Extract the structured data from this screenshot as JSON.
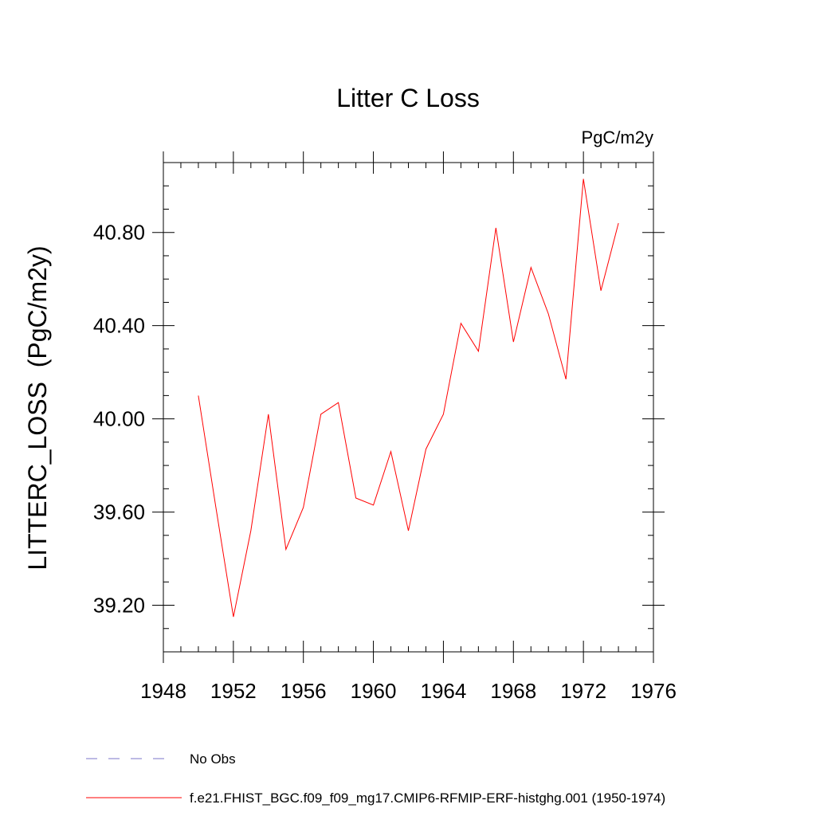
{
  "chart_data": {
    "type": "line",
    "title": "Litter C Loss",
    "units_label": "PgC/m2y",
    "xlabel": "",
    "ylabel": "LITTERC_LOSS  (PgC/m2y)",
    "xlim": [
      1948,
      1976
    ],
    "ylim": [
      39.0,
      41.1
    ],
    "x_ticks": [
      1948,
      1952,
      1956,
      1960,
      1964,
      1968,
      1972,
      1976
    ],
    "x_tick_labels": [
      "1948",
      "1952",
      "1956",
      "1960",
      "1964",
      "1968",
      "1972",
      "1976"
    ],
    "y_ticks": [
      39.2,
      39.6,
      40.0,
      40.4,
      40.8
    ],
    "y_tick_labels": [
      "39.20",
      "39.60",
      "40.00",
      "40.40",
      "40.80"
    ],
    "x_minor_step": 1,
    "y_minor_step": 0.1,
    "grid": false,
    "series": [
      {
        "name": "f.e21.FHIST_BGC.f09_f09_mg17.CMIP6-RFMIP-ERF-histghg.001 (1950-1974)",
        "color": "#ff0000",
        "style": "solid",
        "x": [
          1950,
          1951,
          1952,
          1953,
          1954,
          1955,
          1956,
          1957,
          1958,
          1959,
          1960,
          1961,
          1962,
          1963,
          1964,
          1965,
          1966,
          1967,
          1968,
          1969,
          1970,
          1971,
          1972,
          1973,
          1974
        ],
        "values": [
          40.1,
          39.62,
          39.15,
          39.52,
          40.02,
          39.44,
          39.62,
          40.02,
          40.07,
          39.66,
          39.63,
          39.86,
          39.52,
          39.87,
          40.02,
          40.41,
          40.29,
          40.82,
          40.33,
          40.65,
          40.45,
          40.17,
          41.03,
          40.55,
          40.84
        ]
      }
    ],
    "legend": [
      {
        "label": "No Obs",
        "color": "#7b74c8",
        "style": "dashed"
      },
      {
        "label": "f.e21.FHIST_BGC.f09_f09_mg17.CMIP6-RFMIP-ERF-histghg.001 (1950-1974)",
        "color": "#ff0000",
        "style": "solid"
      }
    ]
  }
}
